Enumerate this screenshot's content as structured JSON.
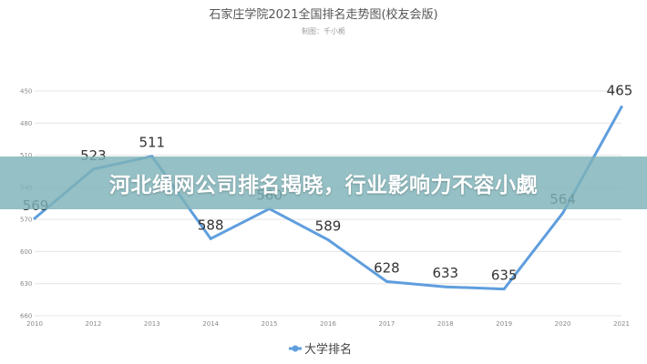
{
  "banner": {
    "headline": "河北绳网公司排名揭晓，行业影响力不容小觑"
  },
  "chart_data": {
    "type": "line",
    "title": "石家庄学院2021全国排名走势图(校友会版)",
    "subtitle": "制图：千小栀",
    "x": [
      "2010",
      "2012",
      "2013",
      "2014",
      "2015",
      "2016",
      "2017",
      "2018",
      "2019",
      "2020",
      "2021"
    ],
    "y_ticks": [
      450,
      480,
      510,
      540,
      570,
      600,
      630,
      660
    ],
    "ylim": [
      450,
      660
    ],
    "y_inverted": true,
    "grid": "horizontal",
    "legend_position": "bottom-center",
    "series": [
      {
        "name": "大学排名",
        "color": "#5f9ede",
        "values": [
          569,
          523,
          511,
          588,
          560,
          589,
          628,
          633,
          635,
          564,
          465
        ]
      }
    ]
  }
}
